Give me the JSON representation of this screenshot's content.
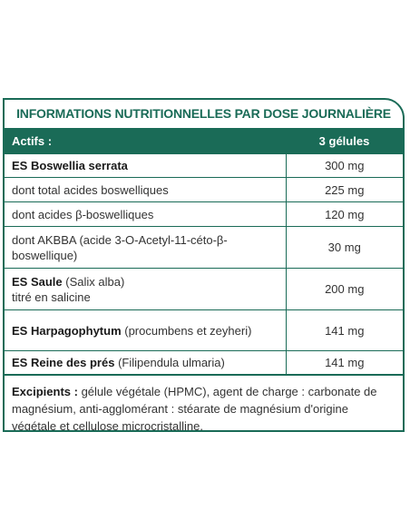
{
  "title": "INFORMATIONS NUTRITIONNELLES PAR DOSE JOURNALIÈRE",
  "header": {
    "col1": "Actifs :",
    "col2": "3 gélules"
  },
  "rows": [
    {
      "bold": "ES Boswellia serrata",
      "rest": "",
      "line2": "",
      "value": "300 mg"
    },
    {
      "bold": "",
      "rest": "dont total acides boswelliques",
      "line2": "",
      "value": "225 mg"
    },
    {
      "bold": "",
      "rest": "dont acides β-boswelliques",
      "line2": "",
      "value": "120 mg"
    },
    {
      "bold": "",
      "rest": "dont AKBBA (acide 3-O-Acetyl-11-céto-β-boswellique)",
      "line2": "",
      "value": "30 mg"
    },
    {
      "bold": "ES Saule",
      "rest": " (Salix alba)",
      "line2": "titré en salicine",
      "value": "200 mg"
    },
    {
      "bold": "ES Harpagophytum",
      "rest": " (procumbens et zeyheri)",
      "line2": "",
      "value": "141 mg"
    },
    {
      "bold": "ES Reine des prés",
      "rest": " (Filipendula ulmaria)",
      "line2": "",
      "value": "141 mg"
    }
  ],
  "excipients": {
    "label": "Excipients :",
    "text": " gélule végétale (HPMC), agent de charge : carbonate de magnésium, anti-agglomérant : stéarate de magnésium d'origine végétale et cellulose microcristalline."
  }
}
